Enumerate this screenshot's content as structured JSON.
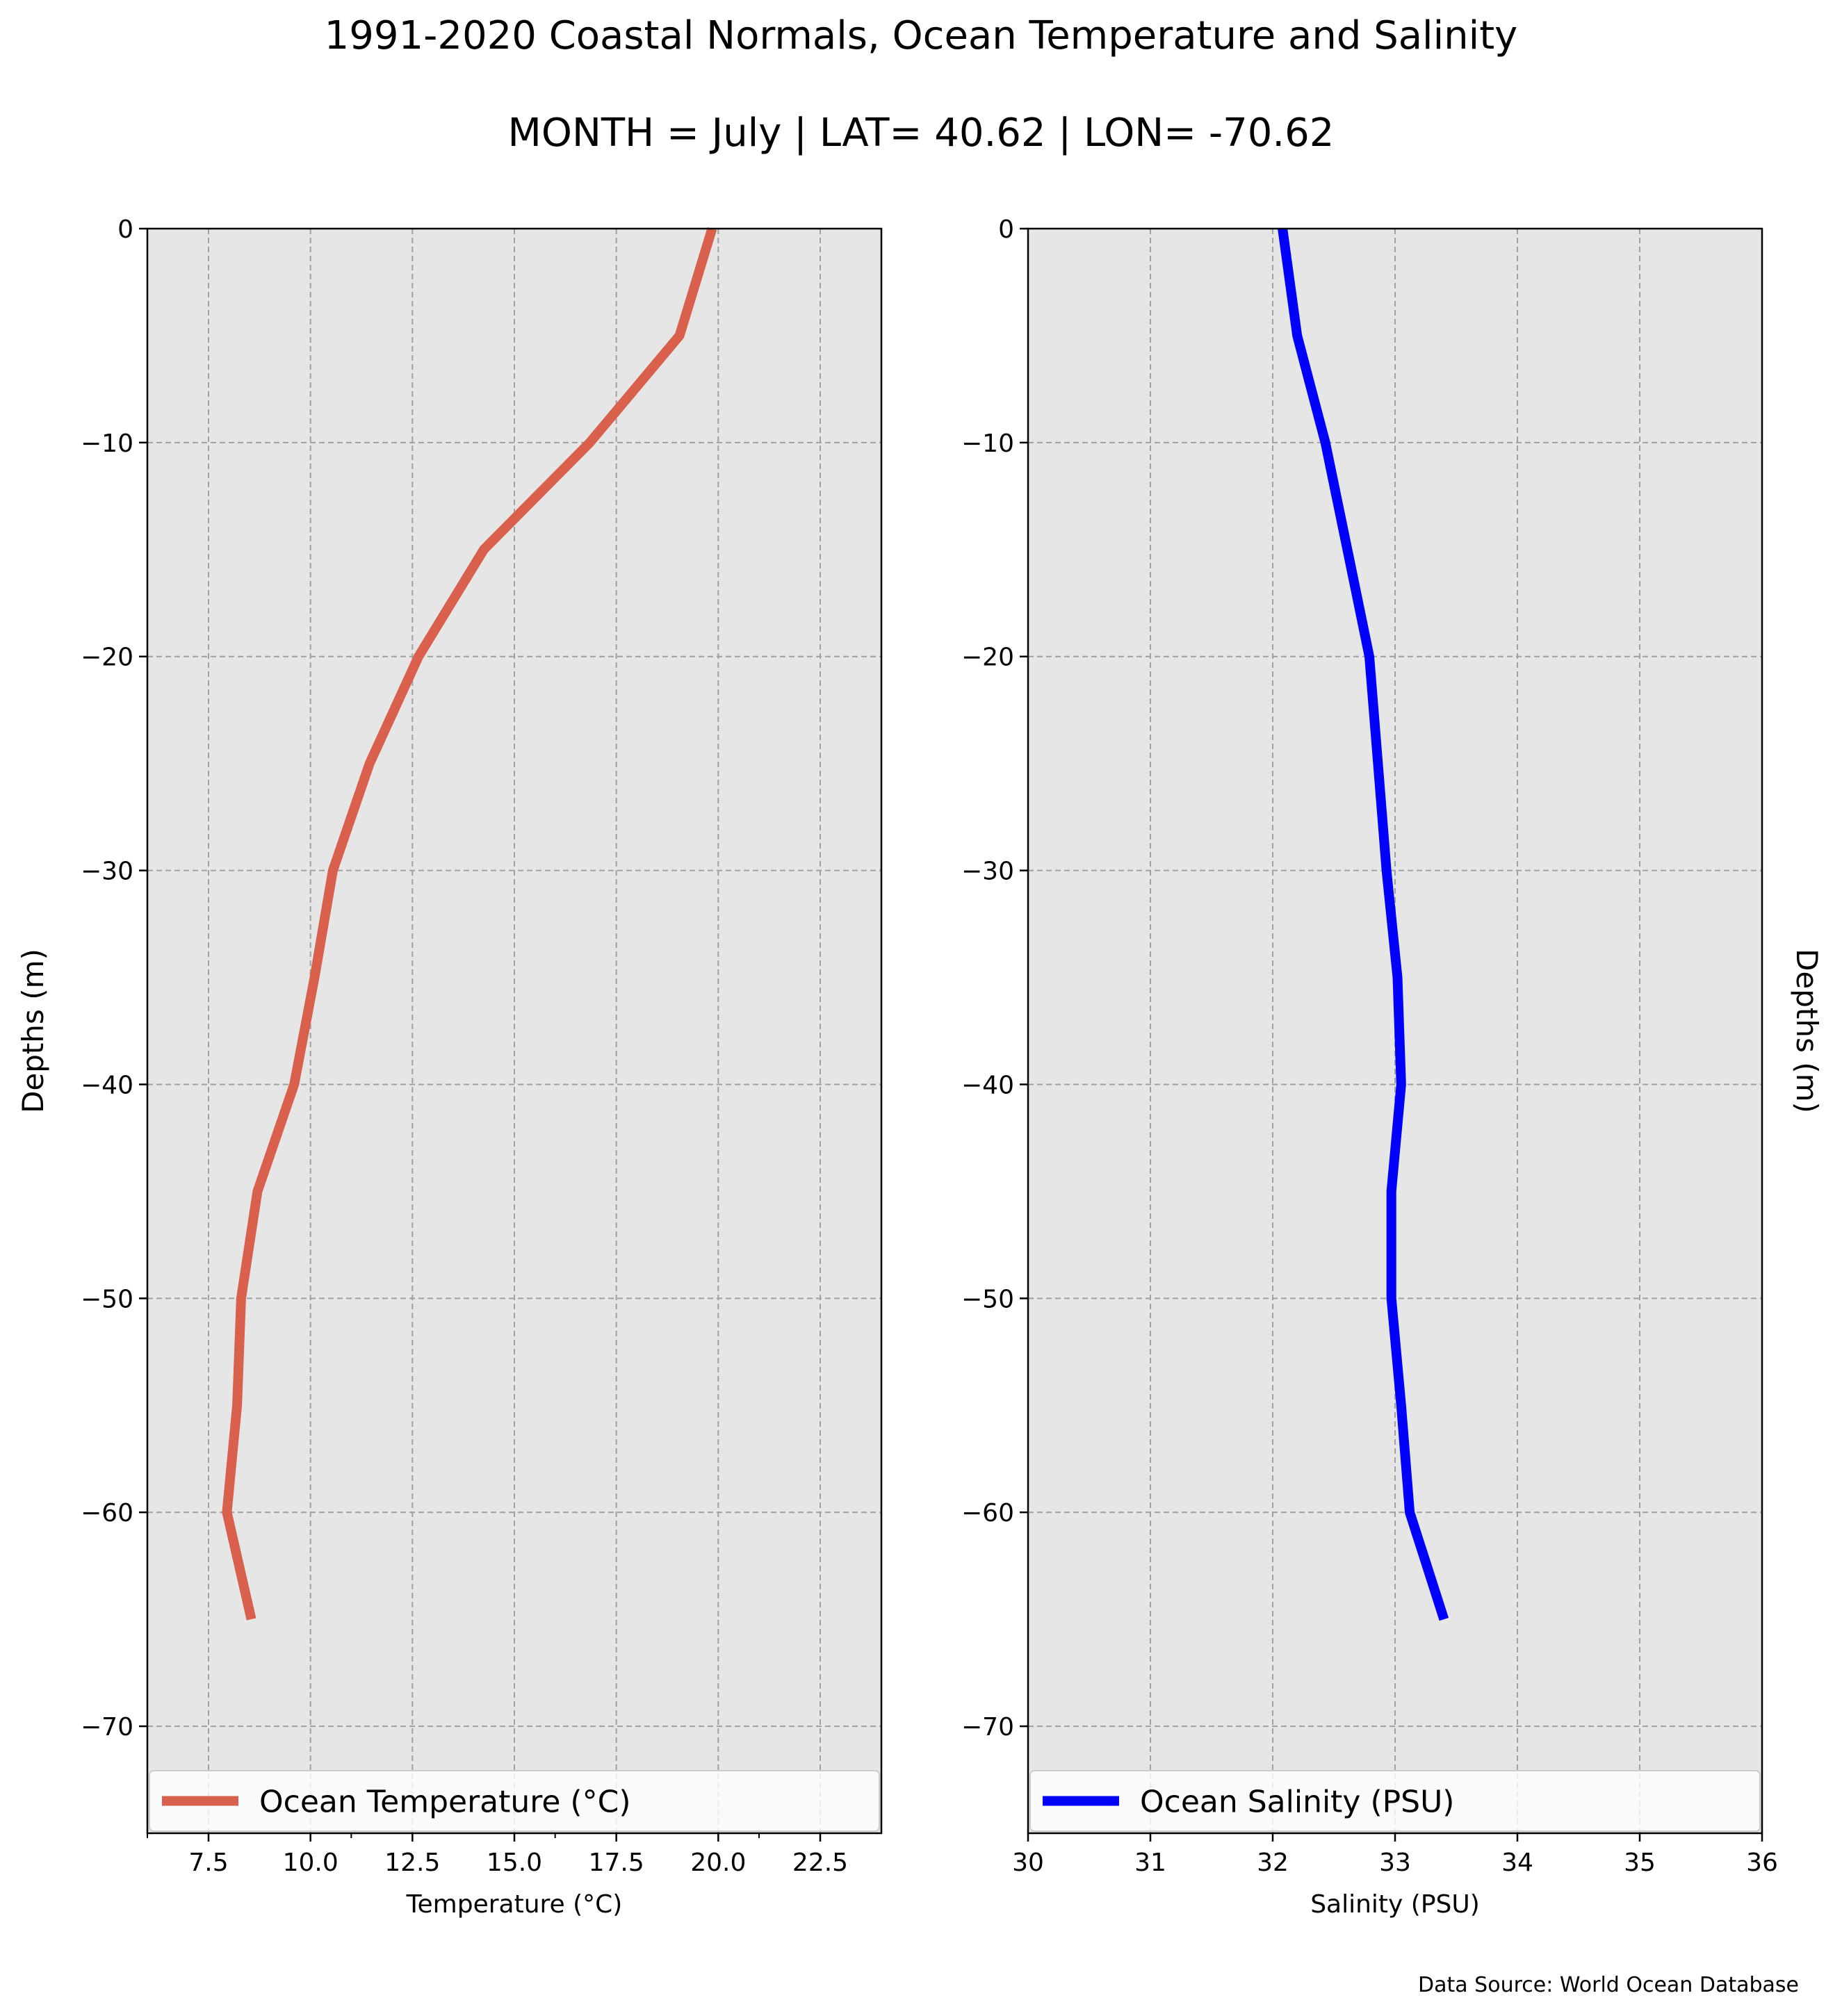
{
  "title": "1991-2020 Coastal Normals, Ocean Temperature and Salinity",
  "subtitle": "MONTH = July | LAT= 40.62 | LON= -70.62",
  "source_note": "Data Source: World Ocean Database",
  "colors": {
    "panel_bg": "#e6e6e6",
    "grid": "#a0a0a0",
    "temperature": "#d9604d",
    "salinity": "#0000ff"
  },
  "chart_data": [
    {
      "type": "line",
      "xlabel": "Temperature ($^\\circ$C)",
      "xlabel_display": "Temperature (°C)",
      "ylabel": "Depths (m)",
      "xlim": [
        6.0,
        24.0
      ],
      "ylim": [
        -75.0,
        0.0
      ],
      "xticks": [
        7.5,
        10.0,
        12.5,
        15.0,
        17.5,
        20.0,
        22.5
      ],
      "xtick_labels": [
        "7.5",
        "10.0",
        "12.5",
        "15.0",
        "17.5",
        "20.0",
        "22.5"
      ],
      "xminor_ticks": [
        6.0,
        11.0,
        16.0,
        21.0
      ],
      "yticks": [
        0,
        -10,
        -20,
        -30,
        -40,
        -50,
        -60,
        -70
      ],
      "ytick_labels": [
        "0",
        "−10",
        "−20",
        "−30",
        "−40",
        "−50",
        "−60",
        "−70"
      ],
      "grid": true,
      "legend_position": "lower-center",
      "series": [
        {
          "name": "Ocean Temperature ($^\\circ$C)",
          "display_name": "Ocean Temperature (°C)",
          "color": "#d9604d",
          "x": [
            19.85,
            19.05,
            16.85,
            14.25,
            12.65,
            11.45,
            10.55,
            10.1,
            9.6,
            8.7,
            8.3,
            8.2,
            7.95,
            8.55
          ],
          "y": [
            0,
            -5,
            -10,
            -15,
            -20,
            -25,
            -30,
            -35,
            -40,
            -45,
            -50,
            -55,
            -60,
            -65
          ]
        }
      ]
    },
    {
      "type": "line",
      "xlabel": "Salinity (PSU)",
      "ylabel": "Depths (m)",
      "xlim": [
        30,
        36
      ],
      "ylim": [
        -75.0,
        0.0
      ],
      "xticks": [
        30,
        31,
        32,
        33,
        34,
        35,
        36
      ],
      "xtick_labels": [
        "30",
        "31",
        "32",
        "33",
        "34",
        "35",
        "36"
      ],
      "yticks": [
        0,
        -10,
        -20,
        -30,
        -40,
        -50,
        -60,
        -70
      ],
      "ytick_labels": [
        "0",
        "−10",
        "−20",
        "−30",
        "−40",
        "−50",
        "−60",
        "−70"
      ],
      "grid": true,
      "legend_position": "lower-center",
      "series": [
        {
          "name": "Ocean Salinity (PSU)",
          "color": "#0000ff",
          "x": [
            32.08,
            32.2,
            32.43,
            32.61,
            32.79,
            32.86,
            32.93,
            33.02,
            33.05,
            32.97,
            32.97,
            33.05,
            33.12,
            33.4
          ],
          "y": [
            0,
            -5,
            -10,
            -15,
            -20,
            -25,
            -30,
            -35,
            -40,
            -45,
            -50,
            -55,
            -60,
            -65
          ]
        }
      ]
    }
  ]
}
